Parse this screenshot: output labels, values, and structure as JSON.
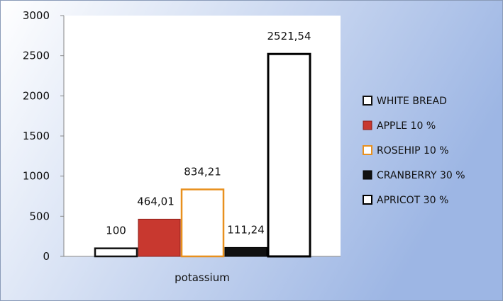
{
  "chart_data": {
    "type": "bar",
    "categories": [
      "potassium"
    ],
    "series": [
      {
        "name": "WHITE BREAD",
        "values": [
          100
        ],
        "label": "100",
        "fill": "#ffffff",
        "stroke": "#111111"
      },
      {
        "name": "APPLE 10 %",
        "values": [
          464.01
        ],
        "label": "464,01",
        "fill": "#c8382f",
        "stroke": "#8a1e18"
      },
      {
        "name": "ROSEHIP 10 %",
        "values": [
          834.21
        ],
        "label": "834,21",
        "fill": "#ffffff",
        "stroke": "#e8901e"
      },
      {
        "name": "CRANBERRY 30 %",
        "values": [
          111.24
        ],
        "label": "111,24",
        "fill": "#111111",
        "stroke": "#000000"
      },
      {
        "name": "APRICOT 30 %",
        "values": [
          2521.54
        ],
        "label": "2521,54",
        "fill": "#ffffff",
        "stroke": "#000000"
      }
    ],
    "yticks": [
      "0",
      "500",
      "1000",
      "1500",
      "2000",
      "2500",
      "3000"
    ],
    "ylim": [
      0,
      3000
    ],
    "grid": false,
    "legend": "right",
    "background": {
      "gradient_from": "#ffffff",
      "gradient_to": "#9db6e4"
    }
  }
}
